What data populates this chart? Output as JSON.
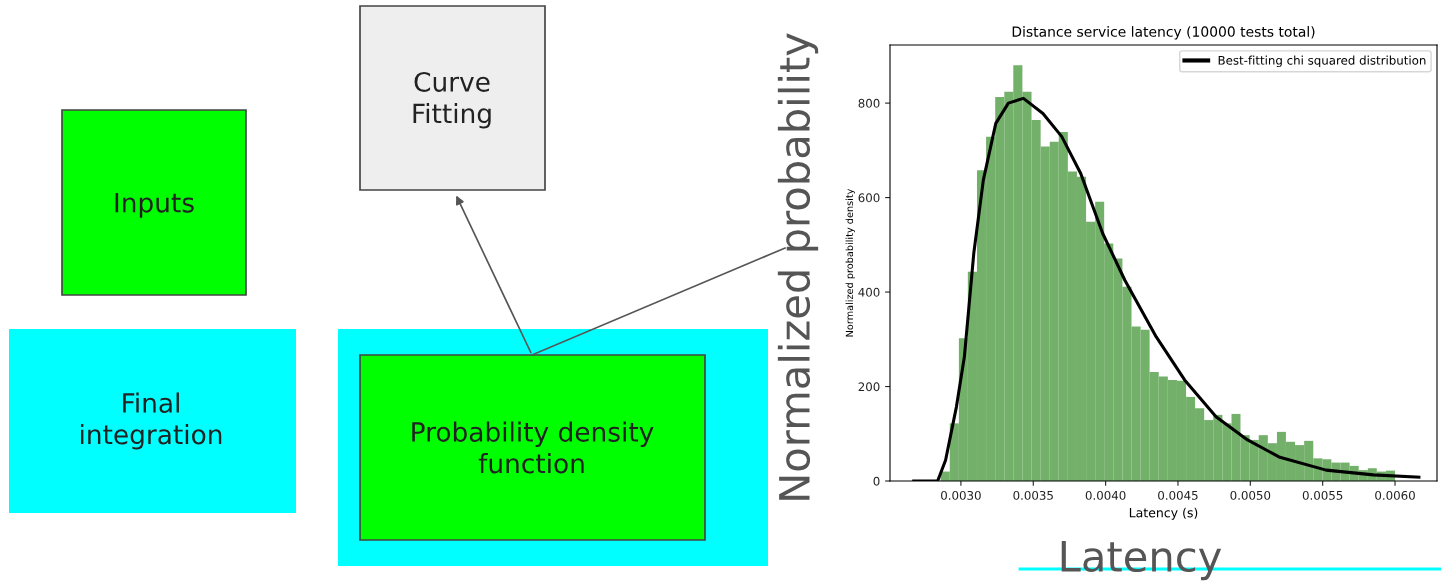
{
  "chart_data": [
    {
      "type": "other",
      "annotations": [
        "Curve\nFitting",
        "Inputs",
        "Final\nintegration",
        "Probability density\nfunction",
        "Normalized probability",
        "Latency"
      ]
    },
    {
      "type": "histogram",
      "title": "Distance service latency (10000 tests total)",
      "xlabel": "Latency (s)",
      "ylabel": "Normalized probability density",
      "xlim": [
        0.00251,
        0.00629
      ],
      "ylim": [
        0,
        923
      ],
      "xticks": [
        {
          "value": 0.003,
          "label": "0.0030"
        },
        {
          "value": 0.0035,
          "label": "0.0035"
        },
        {
          "value": 0.004,
          "label": "0.0040"
        },
        {
          "value": 0.0045,
          "label": "0.0045"
        },
        {
          "value": 0.005,
          "label": "0.0050"
        },
        {
          "value": 0.0055,
          "label": "0.0055"
        },
        {
          "value": 0.006,
          "label": "0.0060"
        }
      ],
      "yticks": [
        0,
        200,
        400,
        600,
        800
      ],
      "legend": "top right",
      "series": [
        {
          "type": "histogram",
          "color": "#73b06a",
          "bins": [
            0.00286,
            0.002923,
            0.002986,
            0.003048,
            0.003111,
            0.003174,
            0.003237,
            0.0033,
            0.003362,
            0.003425,
            0.003488,
            0.003551,
            0.003614,
            0.003676,
            0.003739,
            0.003802,
            0.003865,
            0.003928,
            0.00399,
            0.004053,
            0.004116,
            0.004179,
            0.004242,
            0.004304,
            0.004367,
            0.00443,
            0.004493,
            0.004556,
            0.004618,
            0.004681,
            0.004744,
            0.004807,
            0.00487,
            0.004932,
            0.004995,
            0.005058,
            0.005121,
            0.005184,
            0.005246,
            0.005309,
            0.005372,
            0.005435,
            0.005498,
            0.00556,
            0.005623,
            0.005686,
            0.005749,
            0.005812,
            0.005874,
            0.005937,
            0.006
          ],
          "values": [
            20,
            122,
            302,
            443,
            658,
            729,
            813,
            824,
            880,
            824,
            764,
            708,
            718,
            739,
            655,
            644,
            549,
            591,
            503,
            471,
            411,
            327,
            320,
            231,
            221,
            214,
            212,
            178,
            154,
            129,
            140,
            122,
            142,
            97,
            87,
            97,
            80,
            104,
            83,
            76,
            85,
            48,
            46,
            39,
            39,
            32,
            23,
            27,
            20,
            22
          ]
        },
        {
          "type": "line",
          "name": "Best-fitting chi squared distribution",
          "color": "#000000",
          "x": [
            0.002674,
            0.002839,
            0.002894,
            0.002969,
            0.003024,
            0.003089,
            0.003155,
            0.003241,
            0.003328,
            0.003432,
            0.003567,
            0.003697,
            0.003828,
            0.00398,
            0.004133,
            0.00435,
            0.004546,
            0.004763,
            0.004981,
            0.005198,
            0.005524,
            0.00585,
            0.006165
          ],
          "values": [
            0,
            0,
            44,
            157,
            263,
            482,
            637,
            757,
            800,
            810,
            778,
            729,
            651,
            524,
            425,
            305,
            214,
            136,
            87,
            51,
            23,
            13,
            8
          ]
        }
      ]
    }
  ]
}
